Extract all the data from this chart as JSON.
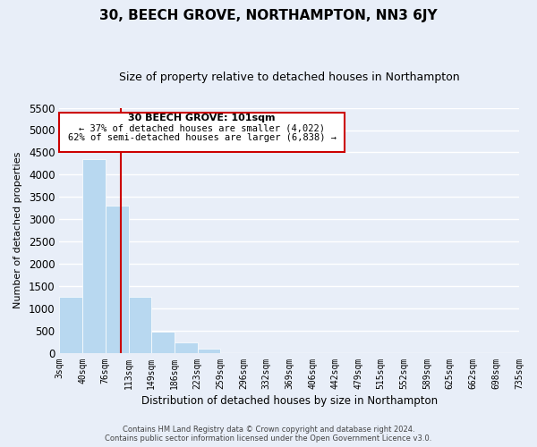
{
  "title": "30, BEECH GROVE, NORTHAMPTON, NN3 6JY",
  "subtitle": "Size of property relative to detached houses in Northampton",
  "xlabel": "Distribution of detached houses by size in Northampton",
  "ylabel": "Number of detached properties",
  "bar_color": "#b8d8f0",
  "vline_color": "#cc0000",
  "vline_x": 101,
  "ylim": [
    0,
    5500
  ],
  "yticks": [
    0,
    500,
    1000,
    1500,
    2000,
    2500,
    3000,
    3500,
    4000,
    4500,
    5000,
    5500
  ],
  "bin_edges": [
    3,
    40,
    76,
    113,
    149,
    186,
    223,
    259,
    296,
    332,
    369,
    406,
    442,
    479,
    515,
    552,
    589,
    625,
    662,
    698,
    735
  ],
  "bin_labels": [
    "3sqm",
    "40sqm",
    "76sqm",
    "113sqm",
    "149sqm",
    "186sqm",
    "223sqm",
    "259sqm",
    "296sqm",
    "332sqm",
    "369sqm",
    "406sqm",
    "442sqm",
    "479sqm",
    "515sqm",
    "552sqm",
    "589sqm",
    "625sqm",
    "662sqm",
    "698sqm",
    "735sqm"
  ],
  "bar_heights": [
    1270,
    4350,
    3300,
    1270,
    480,
    240,
    90,
    0,
    0,
    0,
    0,
    0,
    0,
    0,
    0,
    0,
    0,
    0,
    0,
    0
  ],
  "annotation_title": "30 BEECH GROVE: 101sqm",
  "annotation_line1": "← 37% of detached houses are smaller (4,022)",
  "annotation_line2": "62% of semi-detached houses are larger (6,838) →",
  "annotation_box_color": "#ffffff",
  "annotation_box_edge_color": "#cc0000",
  "footer_line1": "Contains HM Land Registry data © Crown copyright and database right 2024.",
  "footer_line2": "Contains public sector information licensed under the Open Government Licence v3.0.",
  "background_color": "#e8eef8",
  "grid_color": "#ffffff",
  "title_fontsize": 11,
  "subtitle_fontsize": 9,
  "tick_label_fontsize": 7,
  "ylabel_fontsize": 8,
  "xlabel_fontsize": 8.5
}
